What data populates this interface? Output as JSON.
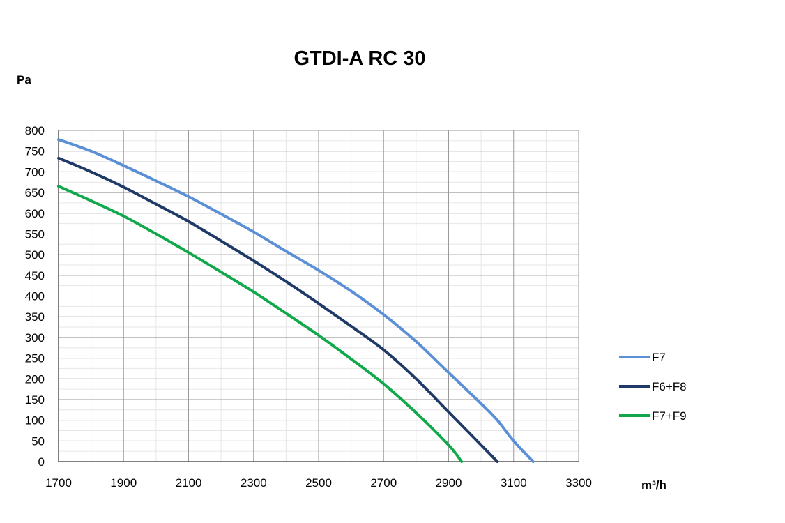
{
  "chart_data": {
    "type": "line",
    "title": "GTDI-A RC 30",
    "ylabel": "Pa",
    "xlabel": "m³/h",
    "xlim": [
      1700,
      3300
    ],
    "ylim": [
      0,
      800
    ],
    "x_ticks": [
      1700,
      1900,
      2100,
      2300,
      2500,
      2700,
      2900,
      3100,
      3300
    ],
    "y_ticks": [
      0,
      50,
      100,
      150,
      200,
      250,
      300,
      350,
      400,
      450,
      500,
      550,
      600,
      650,
      700,
      750,
      800
    ],
    "grid": true,
    "legend_position": "right",
    "series": [
      {
        "name": "F7",
        "color": "#5b8fd6",
        "points": [
          [
            1700,
            778
          ],
          [
            1800,
            750
          ],
          [
            1900,
            715
          ],
          [
            2000,
            678
          ],
          [
            2100,
            640
          ],
          [
            2200,
            598
          ],
          [
            2300,
            555
          ],
          [
            2400,
            508
          ],
          [
            2500,
            462
          ],
          [
            2600,
            412
          ],
          [
            2700,
            355
          ],
          [
            2800,
            290
          ],
          [
            2900,
            215
          ],
          [
            3000,
            140
          ],
          [
            3050,
            100
          ],
          [
            3100,
            50
          ],
          [
            3160,
            0
          ]
        ]
      },
      {
        "name": "F6+F8",
        "color": "#1f3a66",
        "points": [
          [
            1700,
            733
          ],
          [
            1800,
            700
          ],
          [
            1900,
            663
          ],
          [
            2000,
            622
          ],
          [
            2100,
            580
          ],
          [
            2200,
            533
          ],
          [
            2300,
            485
          ],
          [
            2400,
            435
          ],
          [
            2500,
            382
          ],
          [
            2600,
            327
          ],
          [
            2700,
            270
          ],
          [
            2800,
            200
          ],
          [
            2900,
            120
          ],
          [
            2950,
            80
          ],
          [
            3000,
            40
          ],
          [
            3050,
            0
          ]
        ]
      },
      {
        "name": "F7+F9",
        "color": "#11a84b",
        "points": [
          [
            1700,
            665
          ],
          [
            1800,
            630
          ],
          [
            1900,
            593
          ],
          [
            2000,
            550
          ],
          [
            2100,
            505
          ],
          [
            2200,
            458
          ],
          [
            2300,
            410
          ],
          [
            2400,
            358
          ],
          [
            2500,
            305
          ],
          [
            2600,
            248
          ],
          [
            2700,
            188
          ],
          [
            2800,
            118
          ],
          [
            2900,
            40
          ],
          [
            2940,
            0
          ]
        ]
      }
    ]
  }
}
